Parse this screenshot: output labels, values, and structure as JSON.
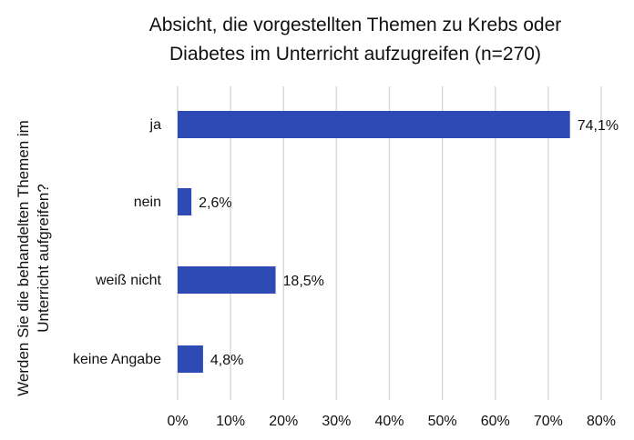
{
  "chart_data": {
    "type": "bar",
    "orientation": "horizontal",
    "title_lines": [
      "Absicht,  die vorgestellten Themen zu Krebs oder",
      "Diabetes im Unterricht aufzugreifen (n=270)"
    ],
    "ylabel_lines": [
      "Werden Sie die behandelten Themen im",
      "Unterricht aufgreifen?"
    ],
    "xlabel": "",
    "categories": [
      "ja",
      "nein",
      "weiß nicht",
      "keine Angabe"
    ],
    "values": [
      74.1,
      2.6,
      18.5,
      4.8
    ],
    "data_labels": [
      "74,1%",
      "2,6%",
      "18,5%",
      "4,8%"
    ],
    "xlim": [
      0,
      80
    ],
    "xticks": [
      0,
      10,
      20,
      30,
      40,
      50,
      60,
      70,
      80
    ],
    "xtick_labels": [
      "0%",
      "10%",
      "20%",
      "30%",
      "40%",
      "50%",
      "60%",
      "70%",
      "80%"
    ],
    "grid": "vertical",
    "legend": "none",
    "bar_color": "#2E4BB5",
    "grid_color": "#D9D9D9"
  }
}
